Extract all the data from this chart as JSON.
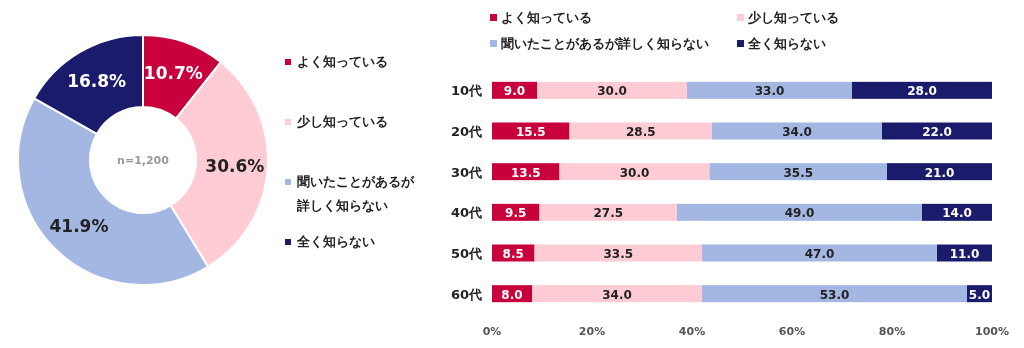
{
  "chart_data": [
    {
      "type": "donut",
      "categories": [
        "よく知っている",
        "少し知っている",
        "聞いたことがあるが詳しく知らない",
        "全く知らない"
      ],
      "values": [
        10.7,
        30.6,
        41.9,
        16.8
      ],
      "colors": [
        "#c8003c",
        "#ffccd6",
        "#a3b7e2",
        "#1b1b6b"
      ],
      "value_labels": [
        "10.7%",
        "30.6%",
        "41.9%",
        "16.8%"
      ],
      "annotations": [
        "n=1,200"
      ],
      "legend": "right"
    },
    {
      "type": "bar",
      "orientation": "horizontal",
      "stacked": true,
      "legend": "top",
      "categories": [
        "10代",
        "20代",
        "30代",
        "40代",
        "50代",
        "60代"
      ],
      "xlim": [
        0,
        100
      ],
      "xticks": [
        {
          "value": 0,
          "label": "0%"
        },
        {
          "value": 20,
          "label": "20%"
        },
        {
          "value": 40,
          "label": "40%"
        },
        {
          "value": 60,
          "label": "60%"
        },
        {
          "value": 80,
          "label": "80%"
        },
        {
          "value": 100,
          "label": "100%"
        }
      ],
      "series": [
        {
          "name": "よく知っている",
          "color": "#c8003c",
          "values": [
            9.0,
            15.5,
            13.5,
            9.5,
            8.5,
            8.0
          ],
          "value_labels": [
            "9.0",
            "15.5",
            "13.5",
            "9.5",
            "8.5",
            "8.0"
          ]
        },
        {
          "name": "少し知っている",
          "color": "#ffccd6",
          "values": [
            30.0,
            28.5,
            30.0,
            27.5,
            33.5,
            34.0
          ],
          "value_labels": [
            "30.0",
            "28.5",
            "30.0",
            "27.5",
            "33.5",
            "34.0"
          ]
        },
        {
          "name": "聞いたことがあるが詳しく知らない",
          "color": "#a3b7e2",
          "values": [
            33.0,
            34.0,
            35.5,
            49.0,
            47.0,
            53.0
          ],
          "value_labels": [
            "33.0",
            "34.0",
            "35.5",
            "49.0",
            "47.0",
            "53.0"
          ]
        },
        {
          "name": "全く知らない",
          "color": "#1b1b6b",
          "values": [
            28.0,
            22.0,
            21.0,
            14.0,
            11.0,
            5.0
          ],
          "value_labels": [
            "28.0",
            "22.0",
            "21.0",
            "14.0",
            "11.0",
            "5.0"
          ]
        }
      ]
    }
  ]
}
